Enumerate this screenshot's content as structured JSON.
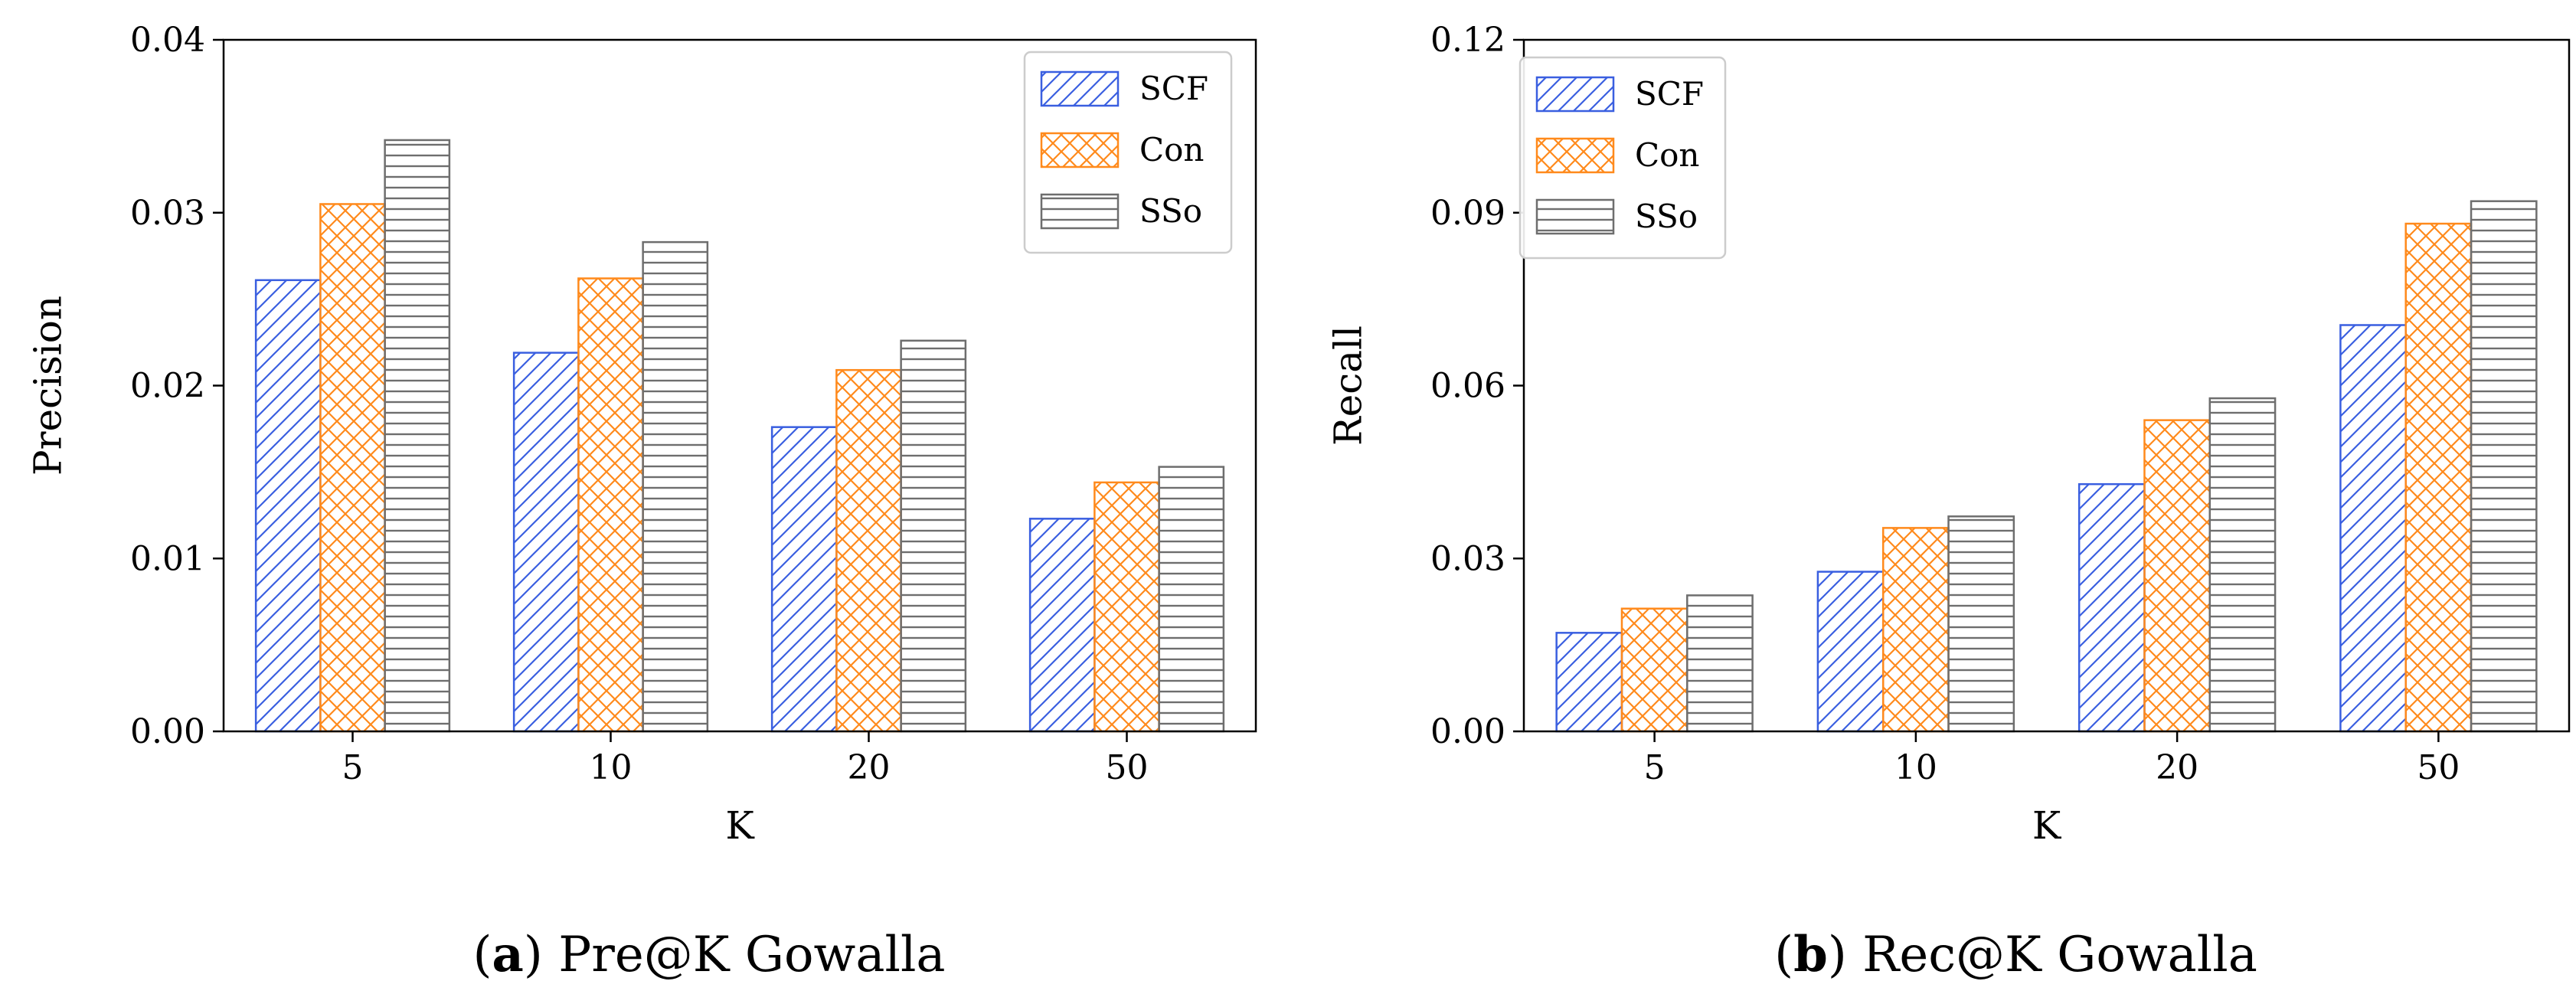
{
  "colors": {
    "SCF": "#3a5fe0",
    "Con": "#ff8a1c",
    "SSo": "#6e6e6e"
  },
  "chart_data": [
    {
      "type": "bar",
      "xlabel": "K",
      "ylabel": "Precision",
      "categories": [
        "5",
        "10",
        "20",
        "50"
      ],
      "ylim": [
        0,
        0.04
      ],
      "yticks": [
        "0.00",
        "0.01",
        "0.02",
        "0.03",
        "0.04"
      ],
      "legend_position": "top-right",
      "series": [
        {
          "name": "SCF",
          "values": [
            0.0261,
            0.0219,
            0.0176,
            0.0123
          ]
        },
        {
          "name": "Con",
          "values": [
            0.0305,
            0.0262,
            0.0209,
            0.0144
          ]
        },
        {
          "name": "SSo",
          "values": [
            0.0342,
            0.0283,
            0.0226,
            0.0153
          ]
        }
      ],
      "caption": {
        "letter": "a",
        "text": "Pre@K Gowalla"
      }
    },
    {
      "type": "bar",
      "xlabel": "K",
      "ylabel": "Recall",
      "categories": [
        "5",
        "10",
        "20",
        "50"
      ],
      "ylim": [
        0,
        0.12
      ],
      "yticks": [
        "0.00",
        "0.03",
        "0.06",
        "0.09",
        "0.12"
      ],
      "legend_position": "top-left",
      "series": [
        {
          "name": "SCF",
          "values": [
            0.0171,
            0.0277,
            0.0429,
            0.0705
          ]
        },
        {
          "name": "Con",
          "values": [
            0.0213,
            0.0353,
            0.054,
            0.0881
          ]
        },
        {
          "name": "SSo",
          "values": [
            0.0236,
            0.0373,
            0.0578,
            0.092
          ]
        }
      ],
      "caption": {
        "letter": "b",
        "text": "Rec@K Gowalla"
      }
    }
  ]
}
